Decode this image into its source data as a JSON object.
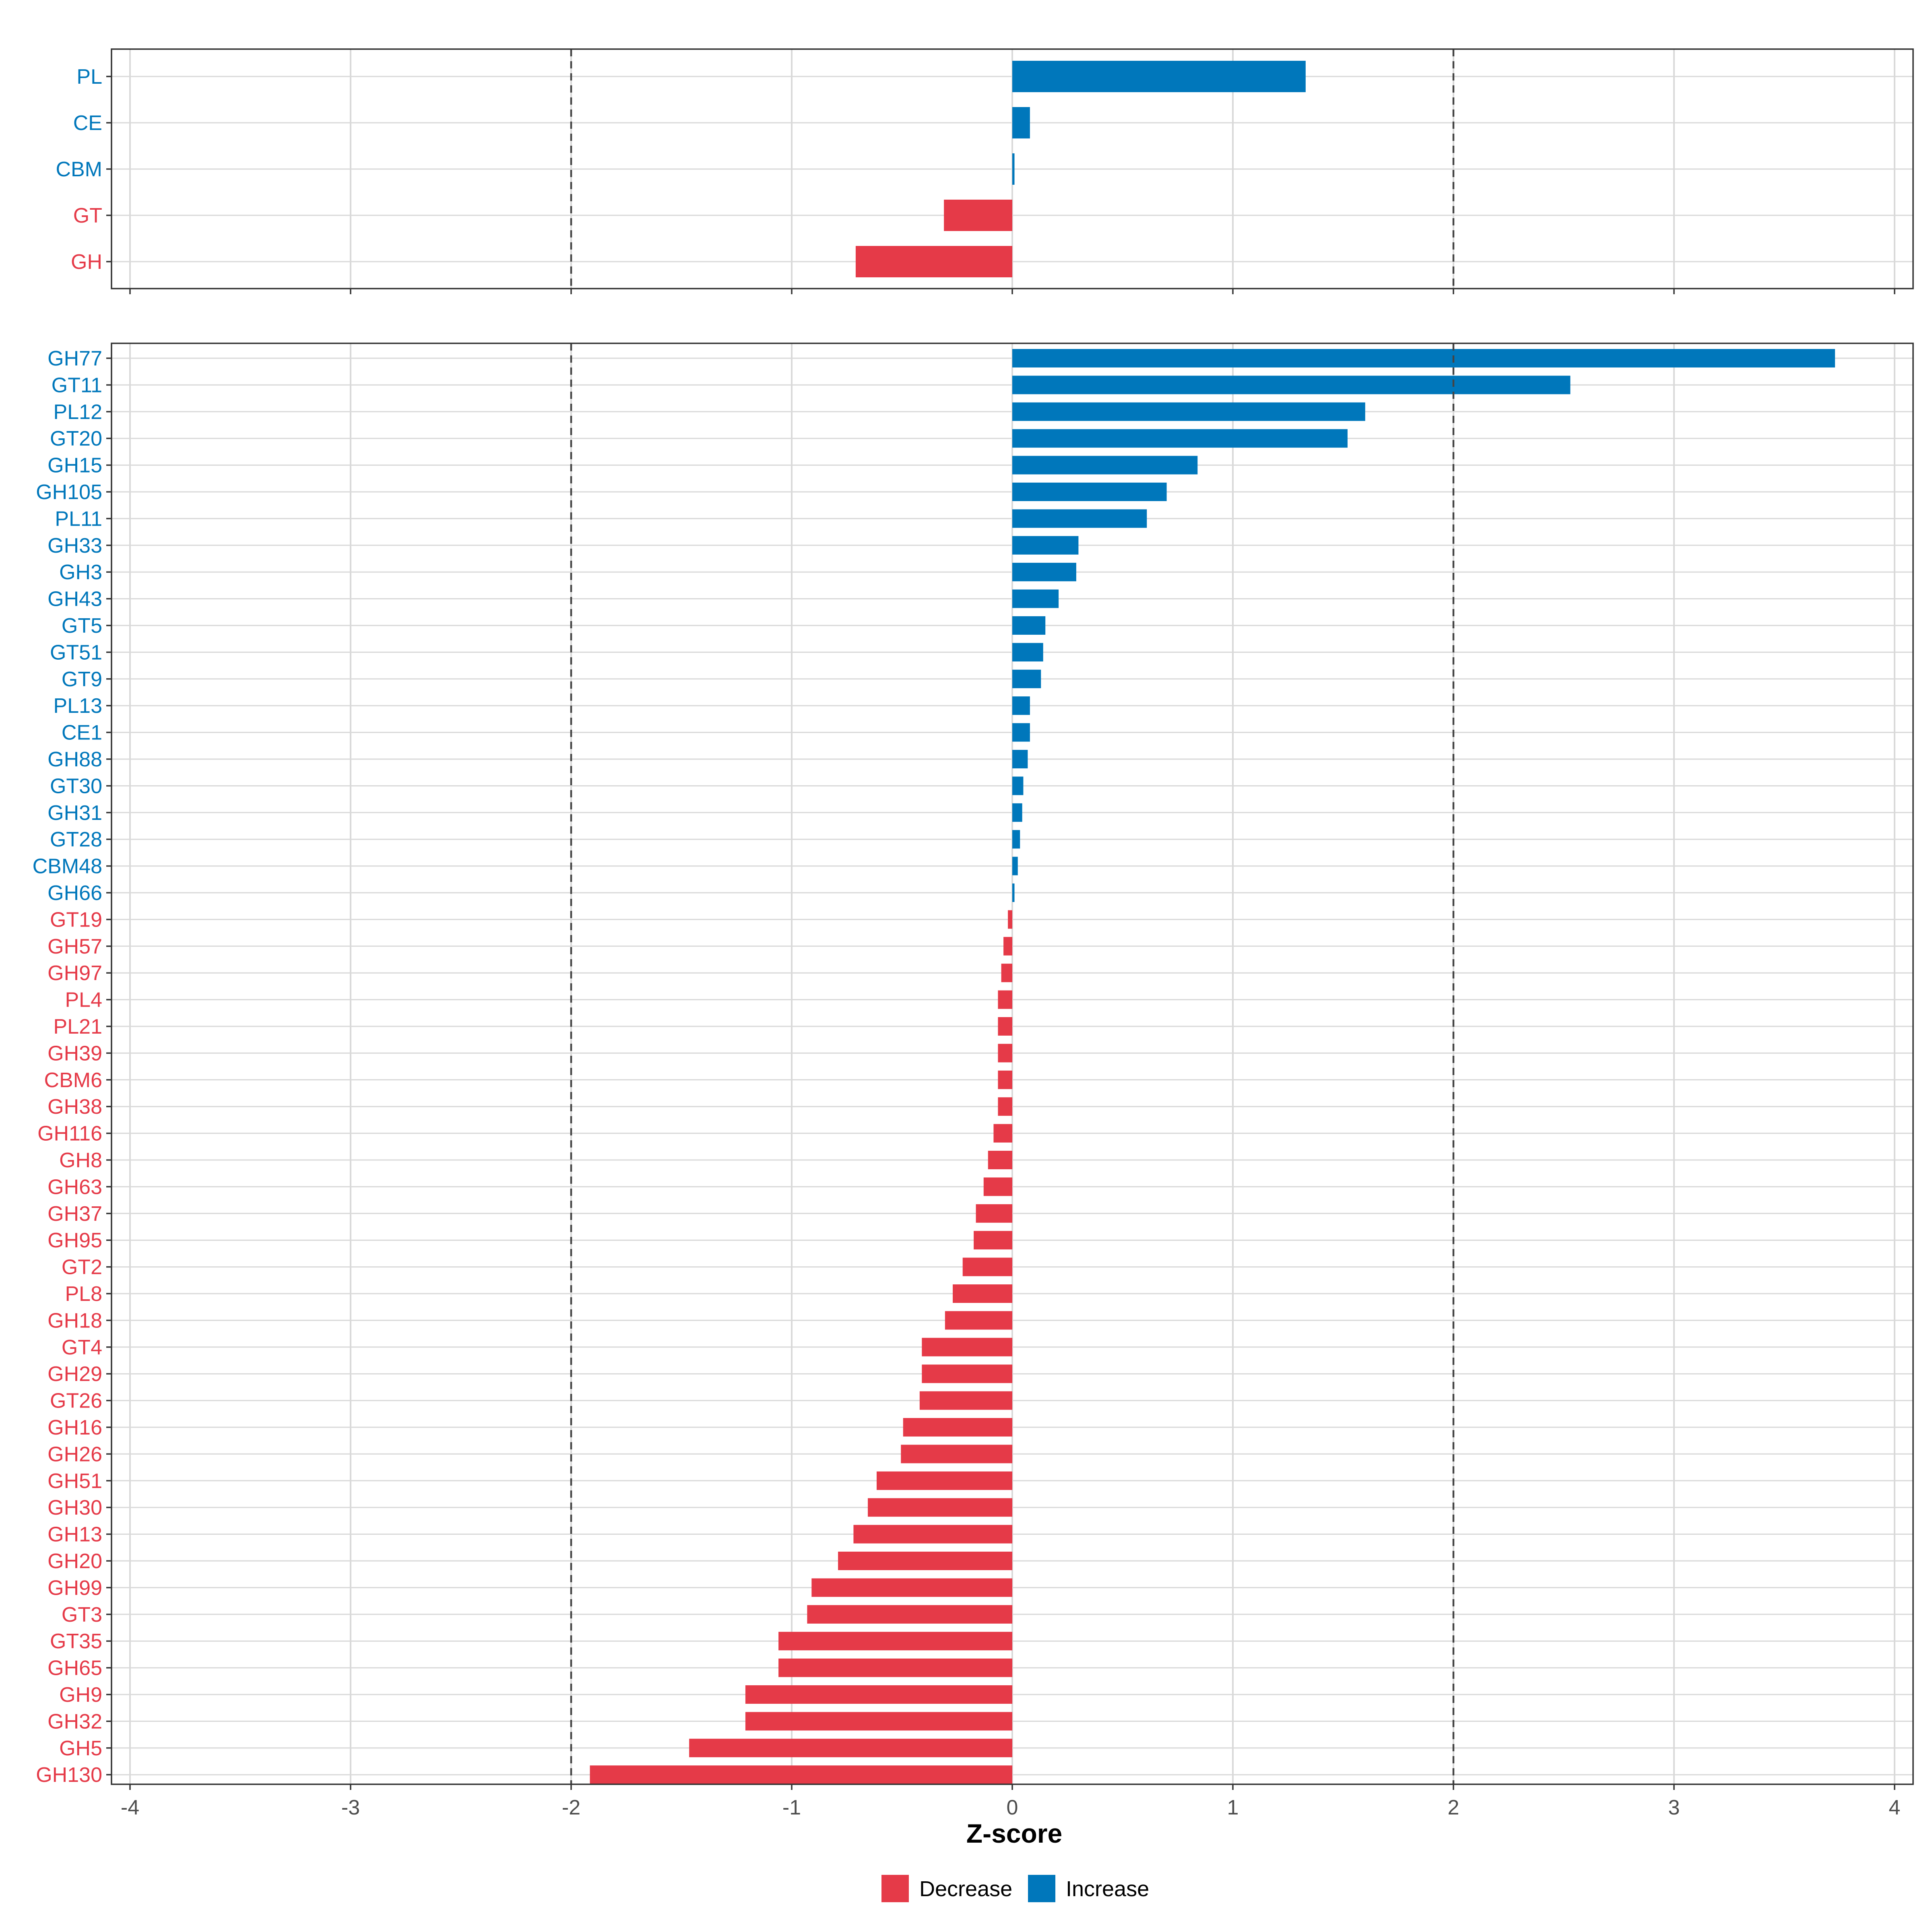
{
  "colors": {
    "increase": "#0077bb",
    "decrease": "#e53a48",
    "grid": "#d9d9d9",
    "axis": "#333333",
    "threshold": "#444444"
  },
  "chart_data": [
    {
      "type": "bar",
      "orientation": "horizontal",
      "panel": "top",
      "categories": [
        "PL",
        "CE",
        "CBM",
        "GT",
        "GH"
      ],
      "values": [
        1.33,
        0.08,
        0.01,
        -0.31,
        -0.71
      ],
      "xlim": [
        -4,
        4
      ],
      "threshold_lines": [
        -2,
        2
      ],
      "grid": true
    },
    {
      "type": "bar",
      "orientation": "horizontal",
      "panel": "bottom",
      "categories": [
        "GH77",
        "GT11",
        "PL12",
        "GT20",
        "GH15",
        "GH105",
        "PL11",
        "GH33",
        "GH3",
        "GH43",
        "GT5",
        "GT51",
        "GT9",
        "PL13",
        "CE1",
        "GH88",
        "GT30",
        "GH31",
        "GT28",
        "CBM48",
        "GH66",
        "GT19",
        "GH57",
        "GH97",
        "PL4",
        "PL21",
        "GH39",
        "CBM6",
        "GH38",
        "GH116",
        "GH8",
        "GH63",
        "GH37",
        "GH95",
        "GT2",
        "PL8",
        "GH18",
        "GT4",
        "GH29",
        "GT26",
        "GH16",
        "GH26",
        "GH51",
        "GH30",
        "GH13",
        "GH20",
        "GH99",
        "GT3",
        "GT35",
        "GH65",
        "GH9",
        "GH32",
        "GH5",
        "GH130"
      ],
      "values": [
        3.73,
        2.53,
        1.6,
        1.52,
        0.84,
        0.7,
        0.61,
        0.3,
        0.29,
        0.21,
        0.15,
        0.14,
        0.13,
        0.08,
        0.08,
        0.07,
        0.05,
        0.045,
        0.035,
        0.025,
        0.01,
        -0.02,
        -0.04,
        -0.05,
        -0.065,
        -0.065,
        -0.065,
        -0.065,
        -0.065,
        -0.085,
        -0.11,
        -0.13,
        -0.165,
        -0.175,
        -0.225,
        -0.27,
        -0.305,
        -0.41,
        -0.41,
        -0.42,
        -0.495,
        -0.505,
        -0.615,
        -0.655,
        -0.72,
        -0.79,
        -0.91,
        -0.93,
        -1.06,
        -1.06,
        -1.21,
        -1.21,
        -1.465,
        -1.915
      ],
      "xlim": [
        -4,
        4
      ],
      "xticks": [
        -4,
        -3,
        -2,
        -1,
        0,
        1,
        2,
        3,
        4
      ],
      "xtick_labels": [
        "-4",
        "-3",
        "-2",
        "-1",
        "0",
        "1",
        "2",
        "3",
        "4"
      ],
      "threshold_lines": [
        -2,
        2
      ],
      "xlabel": "Z-score",
      "ylabel": "",
      "grid": true
    }
  ],
  "legend": {
    "position": "bottom",
    "items": [
      {
        "label": "Decrease",
        "color_key": "decrease"
      },
      {
        "label": "Increase",
        "color_key": "increase"
      }
    ]
  }
}
